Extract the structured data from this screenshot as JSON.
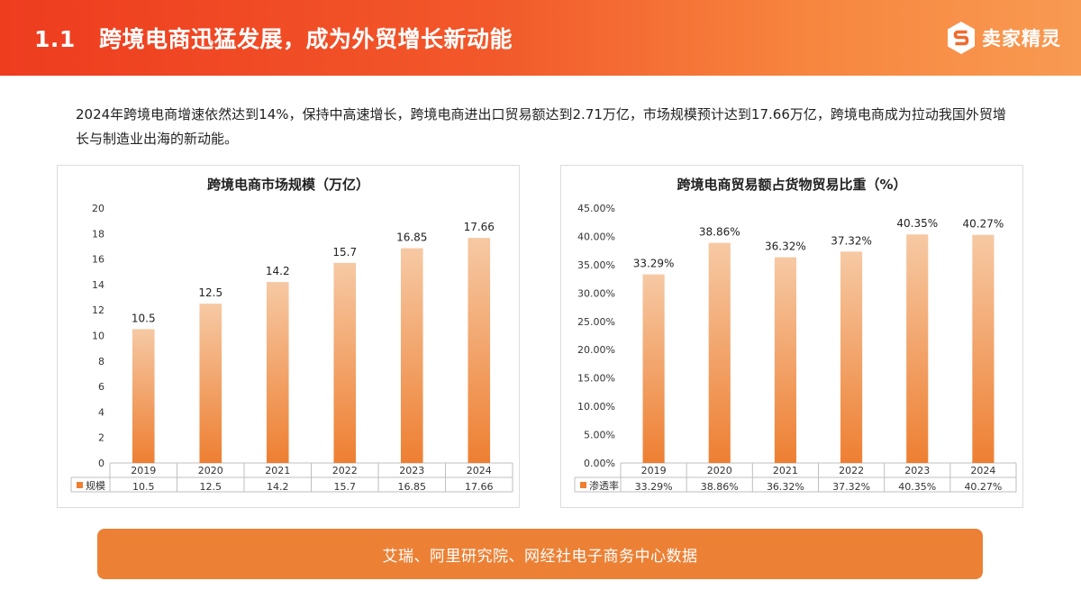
{
  "header": {
    "section_number": "1.1",
    "title": "跨境电商迅猛发展，成为外贸增长新动能",
    "brand_name": "卖家精灵",
    "brand_logo_icon": "seller-sprite-s-logo-icon"
  },
  "intro_text": "2024年跨境电商增速依然达到14%，保持中高速增长，跨境电商进出口贸易额达到2.71万亿，市场规模预计达到17.66万亿，跨境电商成为拉动我国外贸增长与制造业出海的新动能。",
  "source": "艾瑞、阿里研究院、网经社电子商务中心数据",
  "colors": {
    "header_start": "#ee3c1f",
    "header_end": "#f89a52",
    "bar_top": "#f6c9a4",
    "bar_bottom": "#ee7f32",
    "source_bar": "#ec8135"
  },
  "chart_data": [
    {
      "type": "bar",
      "title": "跨境电商市场规模（万亿）",
      "categories": [
        "2019",
        "2020",
        "2021",
        "2022",
        "2023",
        "2024"
      ],
      "series": [
        {
          "name": "规模",
          "values": [
            10.5,
            12.5,
            14.2,
            15.7,
            16.85,
            17.66
          ]
        }
      ],
      "data_labels": [
        "10.5",
        "12.5",
        "14.2",
        "15.7",
        "16.85",
        "17.66"
      ],
      "table_values": [
        "10.5",
        "12.5",
        "14.2",
        "15.7",
        "16.85",
        "17.66"
      ],
      "yticks": [
        "0",
        "2",
        "4",
        "6",
        "8",
        "10",
        "12",
        "14",
        "16",
        "18",
        "20"
      ],
      "ylim": [
        0,
        20
      ],
      "grid": false,
      "data_table": true
    },
    {
      "type": "bar",
      "title": "跨境电商贸易额占货物贸易比重（%）",
      "categories": [
        "2019",
        "2020",
        "2021",
        "2022",
        "2023",
        "2024"
      ],
      "series": [
        {
          "name": "渗透率",
          "values": [
            33.29,
            38.86,
            36.32,
            37.32,
            40.35,
            40.27
          ]
        }
      ],
      "data_labels": [
        "33.29%",
        "38.86%",
        "36.32%",
        "37.32%",
        "40.35%",
        "40.27%"
      ],
      "table_values": [
        "33.29%",
        "38.86%",
        "36.32%",
        "37.32%",
        "40.35%",
        "40.27%"
      ],
      "yticks": [
        "0.00%",
        "5.00%",
        "10.00%",
        "15.00%",
        "20.00%",
        "25.00%",
        "30.00%",
        "35.00%",
        "40.00%",
        "45.00%"
      ],
      "ylim": [
        0,
        45
      ],
      "grid": false,
      "data_table": true
    }
  ]
}
